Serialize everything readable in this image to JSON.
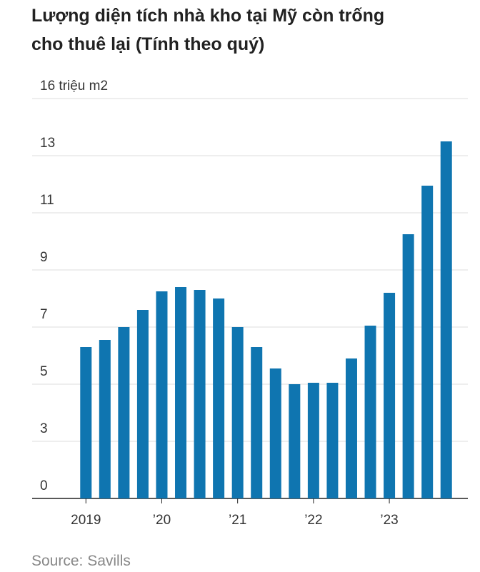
{
  "chart_data": {
    "type": "bar",
    "title": [
      "Lượng diện tích nhà kho tại Mỹ còn trống",
      "cho thuê lại (Tính theo quý)"
    ],
    "source": "Source: Savills",
    "categories": [
      "2019",
      null,
      null,
      null,
      "’20",
      null,
      null,
      null,
      "’21",
      null,
      null,
      null,
      "’22",
      null,
      null,
      null,
      "’23",
      null,
      null,
      null
    ],
    "values": [
      6.3,
      6.55,
      7.0,
      7.6,
      8.25,
      8.4,
      8.3,
      8.0,
      7.0,
      6.3,
      5.55,
      5.0,
      5.05,
      5.05,
      5.9,
      7.05,
      8.2,
      10.25,
      11.95,
      13.75
    ],
    "color": "#0f75b0",
    "ylim": [
      0,
      16
    ],
    "yticks": [
      0,
      3,
      5,
      7,
      9,
      11,
      13,
      {
        "value": 16,
        "label": "16 triệu m2"
      }
    ],
    "grid": true
  }
}
